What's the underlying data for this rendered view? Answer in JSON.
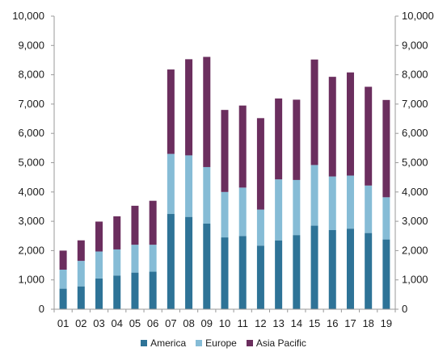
{
  "chart_data": {
    "type": "bar",
    "stacked": true,
    "categories": [
      "01",
      "02",
      "03",
      "04",
      "05",
      "06",
      "07",
      "08",
      "09",
      "10",
      "11",
      "12",
      "13",
      "14",
      "15",
      "16",
      "17",
      "18",
      "19"
    ],
    "series": [
      {
        "name": "America",
        "color": "#2e7397",
        "values": [
          700,
          780,
          1050,
          1150,
          1250,
          1280,
          3250,
          3150,
          2920,
          2450,
          2500,
          2170,
          2350,
          2530,
          2850,
          2700,
          2750,
          2600,
          2380
        ]
      },
      {
        "name": "Europe",
        "color": "#86bcd6",
        "values": [
          650,
          870,
          920,
          890,
          950,
          920,
          2050,
          2100,
          1930,
          1550,
          1650,
          1230,
          2080,
          1880,
          2070,
          1830,
          1810,
          1620,
          1440
        ]
      },
      {
        "name": "Asia Pacific",
        "color": "#6b2e5e",
        "values": [
          650,
          700,
          1020,
          1130,
          1330,
          1500,
          2880,
          3280,
          3760,
          2800,
          2800,
          3120,
          2760,
          2740,
          3600,
          3400,
          3520,
          3370,
          3320
        ]
      }
    ],
    "ylim": [
      0,
      10000
    ],
    "yticks": [
      "0",
      "1,000",
      "2,000",
      "3,000",
      "4,000",
      "5,000",
      "6,000",
      "7,000",
      "8,000",
      "9,000",
      "10,000"
    ],
    "grid": false,
    "legend_position": "bottom"
  }
}
